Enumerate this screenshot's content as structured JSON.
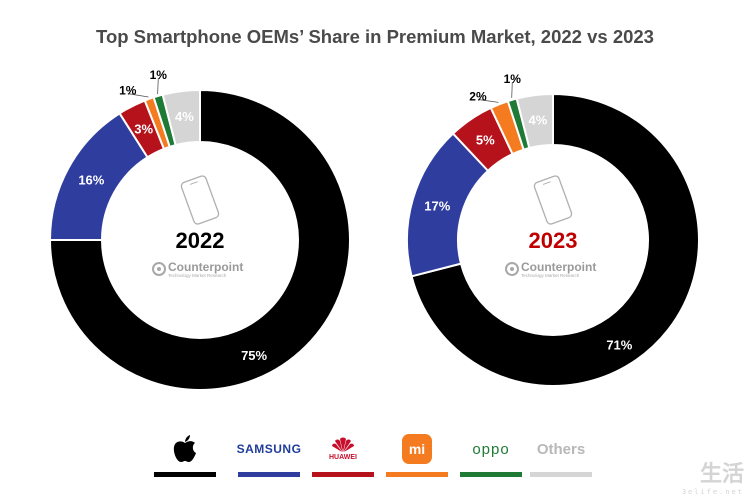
{
  "chart_data": {
    "type": "pie",
    "title": "Top Smartphone OEMs’ Share in Premium Market, 2022 vs 2023",
    "categories": [
      "Apple",
      "Samsung",
      "Huawei",
      "Xiaomi",
      "OPPO",
      "Others"
    ],
    "colors": [
      "#000000",
      "#2f3e9e",
      "#b5121b",
      "#f47b20",
      "#1e7a35",
      "#d5d5d5"
    ],
    "series": [
      {
        "name": "2022",
        "values": [
          75,
          16,
          3,
          1,
          1,
          4
        ],
        "labels": [
          "75%",
          "16%",
          "3%",
          "1%",
          "1%",
          "4%"
        ],
        "year_color": "#000000"
      },
      {
        "name": "2023",
        "values": [
          71,
          17,
          5,
          2,
          1,
          4
        ],
        "labels": [
          "71%",
          "17%",
          "5%",
          "2%",
          "1%",
          "4%"
        ],
        "year_color": "#c00000"
      }
    ]
  },
  "branding": {
    "name": "Counterpoint",
    "tagline": "Technology Market Research"
  },
  "legend": {
    "samsung": "SAMSUNG",
    "huawei": "HUAWEI",
    "xiaomi": "mi",
    "oppo": "oppo",
    "others": "Others"
  },
  "watermark": {
    "main": "生活",
    "sub": "3elife.net"
  }
}
